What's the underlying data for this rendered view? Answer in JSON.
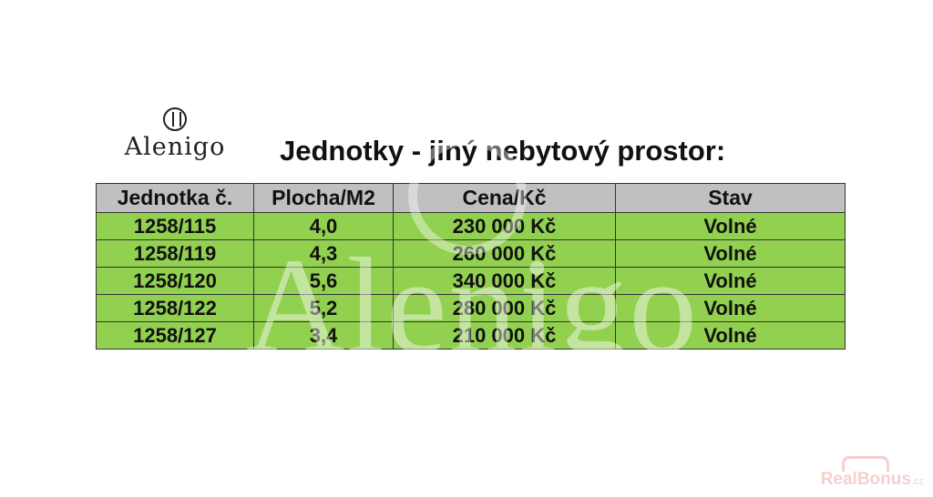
{
  "logo": {
    "text": "Alenigo"
  },
  "title": "Jednotky - jiný nebytový prostor:",
  "table": {
    "headers": [
      "Jednotka č.",
      "Plocha/M2",
      "Cena/Kč",
      "Stav"
    ],
    "rows": [
      [
        "1258/115",
        "4,0",
        "230 000 Kč",
        "Volné"
      ],
      [
        "1258/119",
        "4,3",
        "260 000 Kč",
        "Volné"
      ],
      [
        "1258/120",
        "5,6",
        "340 000 Kč",
        "Volné"
      ],
      [
        "1258/122",
        "5,2",
        "280 000 Kč",
        "Volné"
      ],
      [
        "1258/127",
        "3,4",
        "210 000 Kč",
        "Volné"
      ]
    ]
  },
  "watermark": {
    "text": "Alenigo"
  },
  "source_watermark": {
    "brand": "RealBonus",
    "suffix": ".cz"
  },
  "colors": {
    "header_bg": "#c0c0c0",
    "row_bg": "#92d050"
  }
}
